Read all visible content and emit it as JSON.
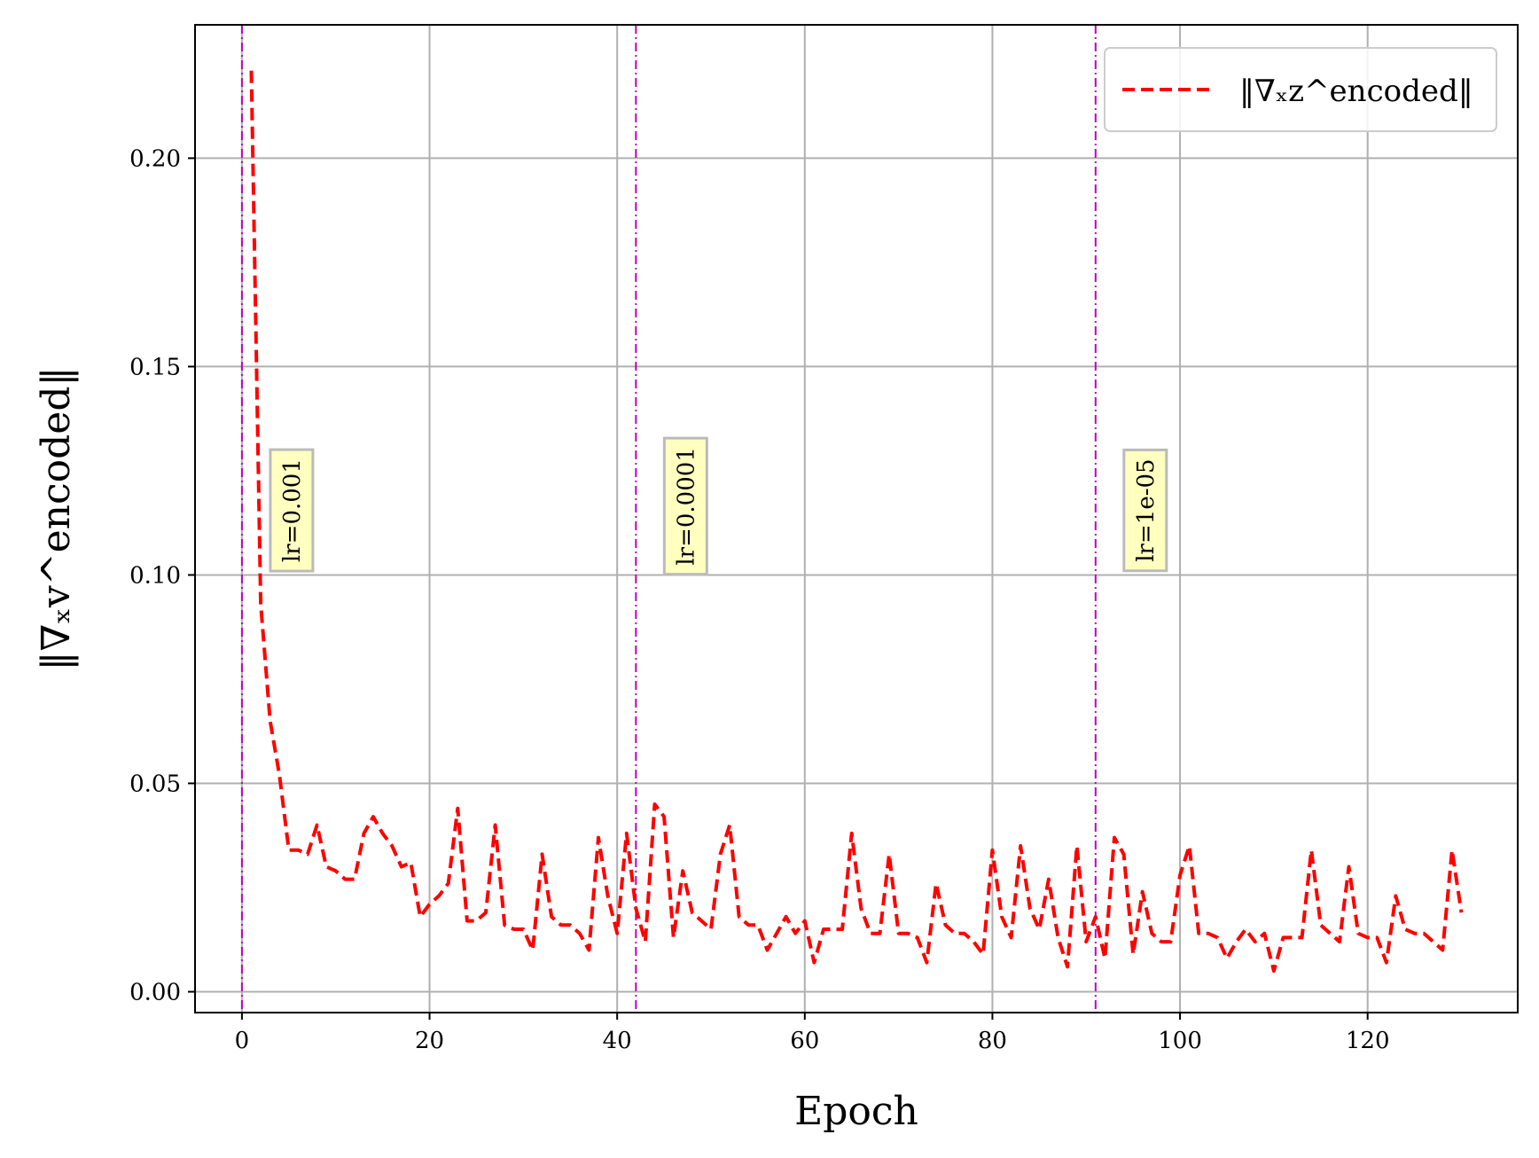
{
  "chart_data": {
    "type": "line",
    "xlabel": "Epoch",
    "ylabel": "‖∇ₓv^encoded‖",
    "xlim": [
      -5,
      136
    ],
    "ylim": [
      -0.005,
      0.232
    ],
    "x_ticks": [
      "0",
      "20",
      "40",
      "60",
      "80",
      "100",
      "120"
    ],
    "x_tick_values": [
      0,
      20,
      40,
      60,
      80,
      100,
      120
    ],
    "y_ticks": [
      "0.00",
      "0.05",
      "0.10",
      "0.15",
      "0.20"
    ],
    "y_tick_values": [
      0,
      0.05,
      0.1,
      0.15,
      0.2
    ],
    "grid": true,
    "legend_position": "top-right",
    "series": [
      {
        "name": "‖∇ₓz^encoded‖",
        "color": "#ff0000",
        "style": "dashed",
        "x": [
          1,
          2,
          3,
          4,
          5,
          6,
          7,
          8,
          9,
          10,
          11,
          12,
          13,
          14,
          15,
          16,
          17,
          18,
          19,
          20,
          21,
          22,
          23,
          24,
          25,
          26,
          27,
          28,
          29,
          30,
          31,
          32,
          33,
          34,
          35,
          36,
          37,
          38,
          39,
          40,
          41,
          42,
          43,
          44,
          45,
          46,
          47,
          48,
          49,
          50,
          51,
          52,
          53,
          54,
          55,
          56,
          57,
          58,
          59,
          60,
          61,
          62,
          63,
          64,
          65,
          66,
          67,
          68,
          69,
          70,
          71,
          72,
          73,
          74,
          75,
          76,
          77,
          78,
          79,
          80,
          81,
          82,
          83,
          84,
          85,
          86,
          87,
          88,
          89,
          90,
          91,
          92,
          93,
          94,
          95,
          96,
          97,
          98,
          99,
          100,
          101,
          102,
          103,
          104,
          105,
          106,
          107,
          108,
          109,
          110,
          111,
          112,
          113,
          114,
          115,
          116,
          117,
          118,
          119,
          120,
          121,
          122,
          123,
          124,
          125,
          126,
          127,
          128,
          129,
          130
        ],
        "values": [
          0.221,
          0.093,
          0.065,
          0.052,
          0.034,
          0.034,
          0.033,
          0.04,
          0.03,
          0.029,
          0.027,
          0.027,
          0.038,
          0.042,
          0.038,
          0.035,
          0.03,
          0.031,
          0.018,
          0.021,
          0.023,
          0.026,
          0.044,
          0.017,
          0.017,
          0.019,
          0.04,
          0.016,
          0.015,
          0.015,
          0.01,
          0.033,
          0.018,
          0.016,
          0.016,
          0.014,
          0.01,
          0.037,
          0.023,
          0.014,
          0.038,
          0.02,
          0.012,
          0.045,
          0.042,
          0.013,
          0.029,
          0.019,
          0.017,
          0.015,
          0.033,
          0.04,
          0.018,
          0.016,
          0.016,
          0.01,
          0.014,
          0.018,
          0.014,
          0.017,
          0.007,
          0.015,
          0.015,
          0.015,
          0.038,
          0.02,
          0.014,
          0.014,
          0.033,
          0.014,
          0.014,
          0.013,
          0.007,
          0.026,
          0.016,
          0.014,
          0.014,
          0.012,
          0.009,
          0.034,
          0.018,
          0.013,
          0.035,
          0.02,
          0.015,
          0.027,
          0.013,
          0.006,
          0.035,
          0.012,
          0.018,
          0.008,
          0.037,
          0.033,
          0.009,
          0.024,
          0.014,
          0.012,
          0.012,
          0.028,
          0.035,
          0.014,
          0.014,
          0.013,
          0.008,
          0.012,
          0.015,
          0.012,
          0.014,
          0.005,
          0.013,
          0.013,
          0.013,
          0.034,
          0.016,
          0.014,
          0.012,
          0.03,
          0.014,
          0.013,
          0.013,
          0.007,
          0.023,
          0.015,
          0.014,
          0.014,
          0.012,
          0.01,
          0.034,
          0.019
        ]
      }
    ],
    "vlines": [
      {
        "x": 0,
        "label": "lr=0.001"
      },
      {
        "x": 42,
        "label": "lr=0.0001"
      },
      {
        "x": 91,
        "label": "lr=1e-05"
      }
    ],
    "vline_color": "#c000c0",
    "annotation_bg": "#ffffc0"
  }
}
